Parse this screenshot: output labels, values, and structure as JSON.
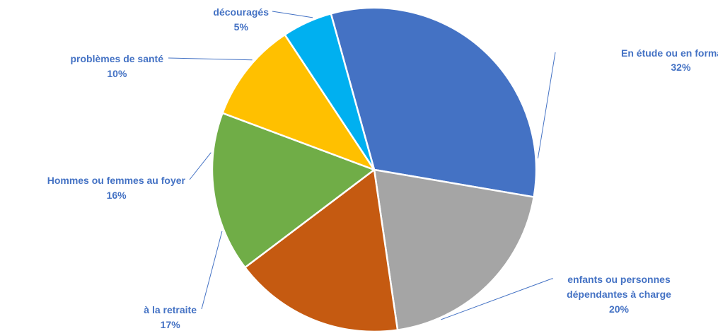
{
  "chart_data": {
    "type": "pie",
    "title": "",
    "label_color": "#4472C4",
    "leader_color": "#4472C4",
    "slices": [
      {
        "label": [
          "En étude ou en formation"
        ],
        "value": 32,
        "value_label": "32%",
        "color": "#4472C4"
      },
      {
        "label": [
          "enfants ou personnes",
          "dépendantes à charge"
        ],
        "value": 20,
        "value_label": "20%",
        "color": "#A5A5A5"
      },
      {
        "label": [
          "à la retraite"
        ],
        "value": 17,
        "value_label": "17%",
        "color": "#C55A11"
      },
      {
        "label": [
          "Hommes ou femmes au foyer"
        ],
        "value": 16,
        "value_label": "16%",
        "color": "#70AD47"
      },
      {
        "label": [
          "problèmes de santé"
        ],
        "value": 10,
        "value_label": "10%",
        "color": "#FFC000"
      },
      {
        "label": [
          "découragés"
        ],
        "value": 5,
        "value_label": "5%",
        "color": "#00B0F0"
      }
    ]
  }
}
